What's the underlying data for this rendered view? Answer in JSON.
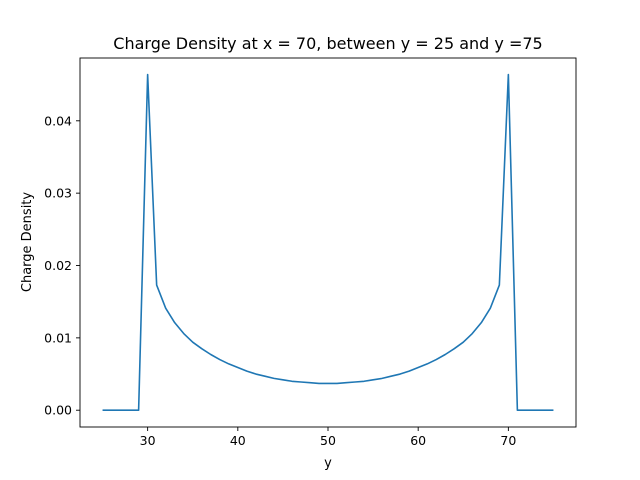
{
  "chart_data": {
    "type": "line",
    "title": "Charge Density at x = 70, between y = 25 and y =75",
    "xlabel": "y",
    "ylabel": "Charge Density",
    "xlim": [
      22.5,
      77.5
    ],
    "ylim": [
      -0.00232,
      0.04868
    ],
    "xticks": [
      30,
      40,
      50,
      60,
      70
    ],
    "xtick_labels": [
      "30",
      "40",
      "50",
      "60",
      "70"
    ],
    "yticks": [
      0.0,
      0.01,
      0.02,
      0.03,
      0.04
    ],
    "ytick_labels": [
      "0.00",
      "0.01",
      "0.02",
      "0.03",
      "0.04"
    ],
    "grid": false,
    "line_color": "#1f77b4",
    "series": [
      {
        "x": [
          25,
          26,
          27,
          28,
          29,
          30,
          31,
          32,
          33,
          34,
          35,
          36,
          37,
          38,
          39,
          40,
          41,
          42,
          43,
          44,
          45,
          46,
          47,
          48,
          49,
          50,
          51,
          52,
          53,
          54,
          55,
          56,
          57,
          58,
          59,
          60,
          61,
          62,
          63,
          64,
          65,
          66,
          67,
          68,
          69,
          70,
          71,
          72,
          73,
          74,
          75
        ],
        "y": [
          0,
          0,
          0,
          0,
          0,
          0.0464,
          0.0173,
          0.0141,
          0.0121,
          0.0106,
          0.0094,
          0.0085,
          0.0077,
          0.007,
          0.0064,
          0.0059,
          0.0054,
          0.005,
          0.0047,
          0.0044,
          0.0042,
          0.004,
          0.0039,
          0.0038,
          0.0037,
          0.0037,
          0.0037,
          0.0038,
          0.0039,
          0.004,
          0.0042,
          0.0044,
          0.0047,
          0.005,
          0.0054,
          0.0059,
          0.0064,
          0.007,
          0.0077,
          0.0085,
          0.0094,
          0.0106,
          0.0121,
          0.0141,
          0.0173,
          0.0464,
          0,
          0,
          0,
          0,
          0
        ]
      }
    ]
  }
}
